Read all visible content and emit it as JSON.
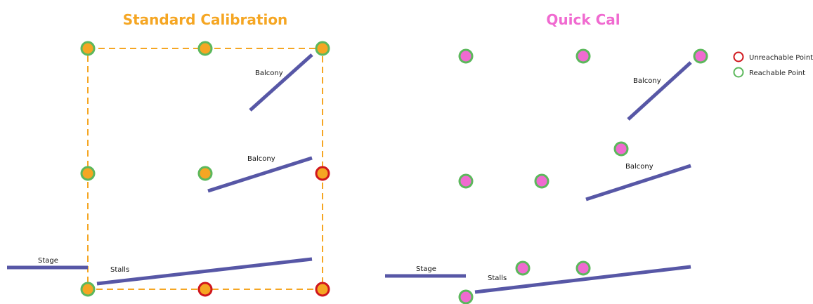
{
  "colors": {
    "standard_accent": "#f5a623",
    "quick_accent": "#f06ad0",
    "surface_line": "#5757a6",
    "reachable": "#5cb85c",
    "unreachable": "#d0161c"
  },
  "standard": {
    "title": "Standard Calibration",
    "labels": {
      "balcony_upper": "Balcony",
      "balcony_lower": "Balcony",
      "stage": "Stage",
      "stalls": "Stalls"
    }
  },
  "quick": {
    "title": "Quick Cal",
    "labels": {
      "balcony_upper": "Balcony",
      "balcony_lower": "Balcony",
      "stage": "Stage",
      "stalls": "Stalls"
    }
  },
  "legend": {
    "unreachable": "Unreachable Point",
    "reachable": "Reachable Point"
  }
}
